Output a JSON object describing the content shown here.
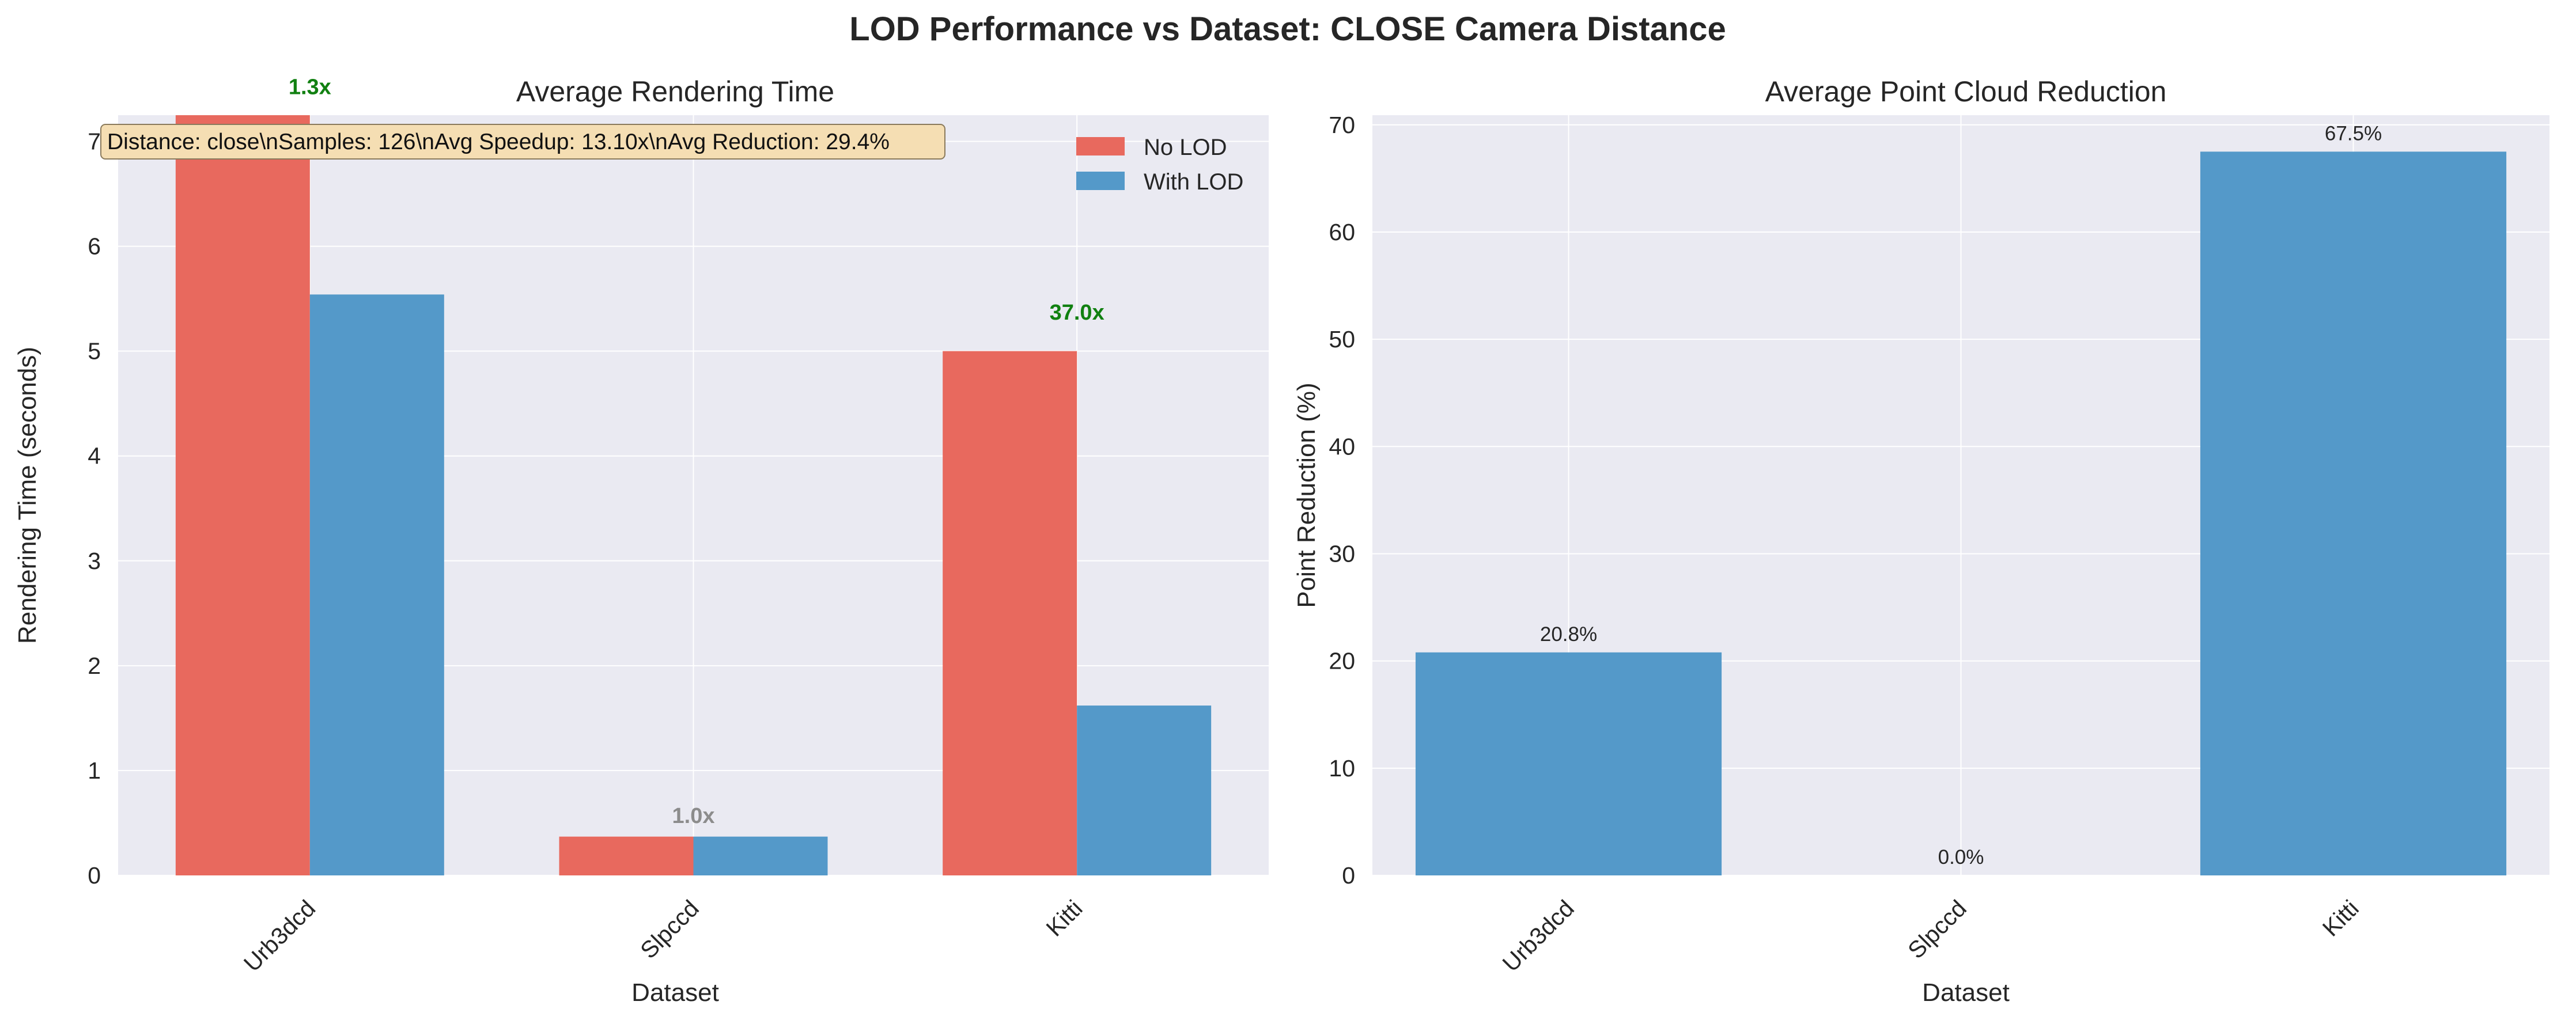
{
  "figure": {
    "title": "LOD Performance vs Dataset: CLOSE Camera Distance"
  },
  "colors": {
    "no_lod": "#e8695e",
    "with_lod": "#5499c9",
    "plot_bg": "#eaeaf2",
    "grid": "#ffffff",
    "speedup_green": "#118011",
    "speedup_gray": "#8c8c8c",
    "info_bg": "#f5deb3"
  },
  "chart_data": [
    {
      "type": "bar",
      "title": "Average Rendering Time",
      "xlabel": "Dataset",
      "ylabel": "Rendering Time (seconds)",
      "categories": [
        "Urb3dcd",
        "Slpccd",
        "Kitti"
      ],
      "series": [
        {
          "name": "No LOD",
          "values": [
            7.25,
            0.37,
            5.0
          ]
        },
        {
          "name": "With LOD",
          "values": [
            5.54,
            0.37,
            1.62
          ]
        }
      ],
      "speedup_labels": [
        "1.3x",
        "1.0x",
        "37.0x"
      ],
      "speedup_label_y": [
        7.45,
        0.5,
        5.3
      ],
      "speedup_label_colors": [
        "green",
        "gray",
        "green"
      ],
      "ylim": [
        0,
        7.25
      ],
      "yticks": [
        0,
        1,
        2,
        3,
        4,
        5,
        6,
        7
      ],
      "grid": true,
      "legend": "top-right",
      "info_box": "Distance: close\\nSamples: 126\\nAvg Speedup: 13.10x\\nAvg Reduction: 29.4%"
    },
    {
      "type": "bar",
      "title": "Average Point Cloud Reduction",
      "xlabel": "Dataset",
      "ylabel": "Point Reduction (%)",
      "categories": [
        "Urb3dcd",
        "Slpccd",
        "Kitti"
      ],
      "values": [
        20.8,
        0.0,
        67.5
      ],
      "value_labels": [
        "20.8%",
        "0.0%",
        "67.5%"
      ],
      "ylim": [
        0,
        70.9
      ],
      "yticks": [
        0,
        10,
        20,
        30,
        40,
        50,
        60,
        70
      ],
      "grid": true
    }
  ]
}
